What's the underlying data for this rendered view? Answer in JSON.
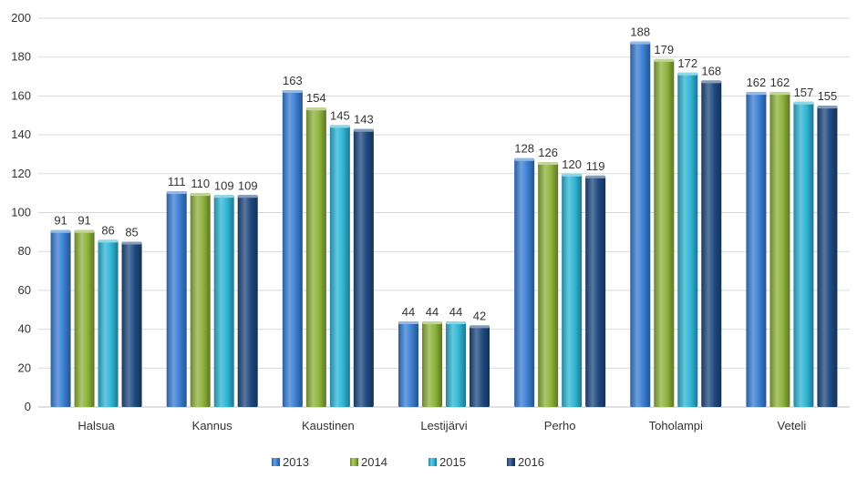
{
  "chart_data": {
    "type": "bar",
    "title": "",
    "xlabel": "",
    "ylabel": "",
    "categories": [
      "Halsua",
      "Kannus",
      "Kaustinen",
      "Lestijärvi",
      "Perho",
      "Toholampi",
      "Veteli"
    ],
    "series": [
      {
        "name": "2013",
        "values": [
          91,
          111,
          163,
          44,
          128,
          188,
          162
        ],
        "color": "#3b7fd4"
      },
      {
        "name": "2014",
        "values": [
          91,
          110,
          154,
          44,
          126,
          179,
          162
        ],
        "color": "#8fb33c"
      },
      {
        "name": "2015",
        "values": [
          86,
          109,
          145,
          44,
          120,
          172,
          157
        ],
        "color": "#2fb6d6"
      },
      {
        "name": "2016",
        "values": [
          85,
          109,
          143,
          42,
          119,
          168,
          155
        ],
        "color": "#1f4a80"
      }
    ],
    "ylim": [
      0,
      200
    ],
    "yticks": [
      0,
      20,
      40,
      60,
      80,
      100,
      120,
      140,
      160,
      180,
      200
    ],
    "grid": true,
    "legend_position": "bottom",
    "data_labels": true
  }
}
